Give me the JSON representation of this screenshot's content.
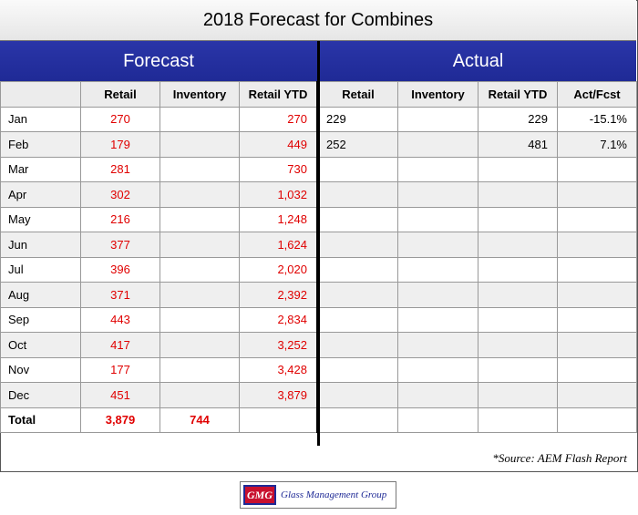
{
  "title": "2018 Forecast for Combines",
  "forecast_header": "Forecast",
  "actual_header": "Actual",
  "columns": [
    "",
    "Retail",
    "Inventory",
    "Retail YTD",
    "Retail",
    "Inventory",
    "Retail YTD",
    "Act/Fcst"
  ],
  "rows": [
    {
      "month": "Jan",
      "f_retail": "270",
      "f_inventory": "",
      "f_ytd": "270",
      "a_retail": "229",
      "a_inventory": "",
      "a_ytd": "229",
      "act_fcst": "-15.1%"
    },
    {
      "month": "Feb",
      "f_retail": "179",
      "f_inventory": "",
      "f_ytd": "449",
      "a_retail": "252",
      "a_inventory": "",
      "a_ytd": "481",
      "act_fcst": "7.1%"
    },
    {
      "month": "Mar",
      "f_retail": "281",
      "f_inventory": "",
      "f_ytd": "730",
      "a_retail": "",
      "a_inventory": "",
      "a_ytd": "",
      "act_fcst": ""
    },
    {
      "month": "Apr",
      "f_retail": "302",
      "f_inventory": "",
      "f_ytd": "1,032",
      "a_retail": "",
      "a_inventory": "",
      "a_ytd": "",
      "act_fcst": ""
    },
    {
      "month": "May",
      "f_retail": "216",
      "f_inventory": "",
      "f_ytd": "1,248",
      "a_retail": "",
      "a_inventory": "",
      "a_ytd": "",
      "act_fcst": ""
    },
    {
      "month": "Jun",
      "f_retail": "377",
      "f_inventory": "",
      "f_ytd": "1,624",
      "a_retail": "",
      "a_inventory": "",
      "a_ytd": "",
      "act_fcst": ""
    },
    {
      "month": "Jul",
      "f_retail": "396",
      "f_inventory": "",
      "f_ytd": "2,020",
      "a_retail": "",
      "a_inventory": "",
      "a_ytd": "",
      "act_fcst": ""
    },
    {
      "month": "Aug",
      "f_retail": "371",
      "f_inventory": "",
      "f_ytd": "2,392",
      "a_retail": "",
      "a_inventory": "",
      "a_ytd": "",
      "act_fcst": ""
    },
    {
      "month": "Sep",
      "f_retail": "443",
      "f_inventory": "",
      "f_ytd": "2,834",
      "a_retail": "",
      "a_inventory": "",
      "a_ytd": "",
      "act_fcst": ""
    },
    {
      "month": "Oct",
      "f_retail": "417",
      "f_inventory": "",
      "f_ytd": "3,252",
      "a_retail": "",
      "a_inventory": "",
      "a_ytd": "",
      "act_fcst": ""
    },
    {
      "month": "Nov",
      "f_retail": "177",
      "f_inventory": "",
      "f_ytd": "3,428",
      "a_retail": "",
      "a_inventory": "",
      "a_ytd": "",
      "act_fcst": ""
    },
    {
      "month": "Dec",
      "f_retail": "451",
      "f_inventory": "",
      "f_ytd": "3,879",
      "a_retail": "",
      "a_inventory": "",
      "a_ytd": "",
      "act_fcst": ""
    }
  ],
  "total": {
    "label": "Total",
    "f_retail": "3,879",
    "f_inventory": "744"
  },
  "source": "*Source: AEM Flash Report",
  "logo": {
    "badge": "GMG",
    "text": "Glass Management Group"
  },
  "colors": {
    "band": "#1f2a96",
    "forecast_values": "#e00000",
    "logo_badge": "#c8102e"
  }
}
